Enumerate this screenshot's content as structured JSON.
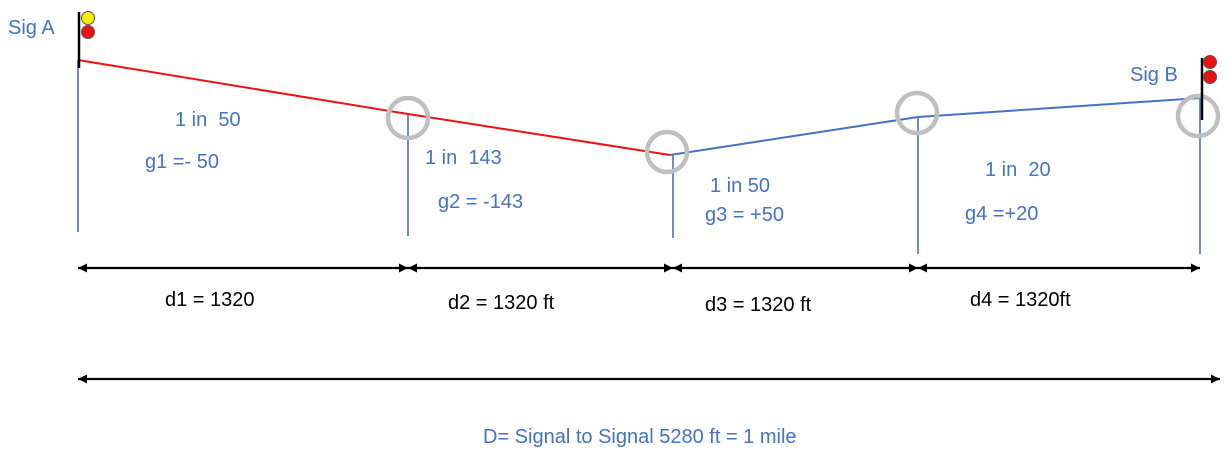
{
  "signals": {
    "a": {
      "label": "Sig A",
      "aspect_colors": [
        "#ffee00",
        "#ee1111"
      ]
    },
    "b": {
      "label": "Sig B",
      "aspect_colors": [
        "#ee1111",
        "#ee1111"
      ]
    }
  },
  "segments": [
    {
      "ratio": "1 in  50",
      "grade": "g1 =- 50",
      "distance": "d1 = 1320",
      "line_color": "#ee1111"
    },
    {
      "ratio": "1 in  143",
      "grade": "g2 = -143",
      "distance": "d2 = 1320 ft",
      "line_color": "#ee1111"
    },
    {
      "ratio": "1 in 50",
      "grade": "g3 = +50",
      "distance": "d3 = 1320 ft",
      "line_color": "#4472c4"
    },
    {
      "ratio": "1 in  20",
      "grade": "g4 =+20",
      "distance": "d4 = 1320ft",
      "line_color": "#4472c4"
    }
  ],
  "total": {
    "label": "D= Signal to Signal 5280 ft = 1 mile"
  },
  "colors": {
    "label_text": "#4472c4",
    "divider": "#4472c4",
    "junction_circle": "#bfbfbf",
    "dimension": "#000000"
  }
}
